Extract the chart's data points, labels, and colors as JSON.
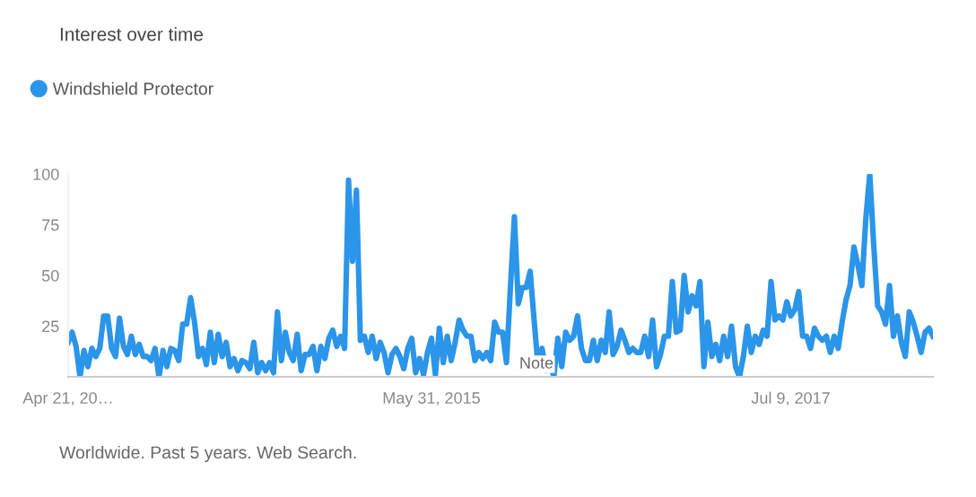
{
  "chart_data": {
    "type": "line",
    "title": "Interest over time",
    "categories": [
      "Apr 21, 20…",
      null,
      null,
      null,
      null,
      null,
      null,
      null,
      null,
      null,
      null,
      null,
      null,
      null,
      null,
      null,
      null,
      null,
      null,
      null,
      null,
      null,
      null,
      null,
      null,
      null,
      null,
      null,
      null,
      null,
      null,
      null,
      null,
      null,
      null,
      null,
      null,
      null,
      null,
      null,
      null,
      null,
      null,
      null,
      null,
      null,
      null,
      null,
      null,
      null,
      null,
      null,
      null,
      null,
      null,
      null,
      null,
      null,
      null,
      null,
      null,
      null,
      null,
      null,
      null,
      null,
      null,
      null,
      null,
      null,
      null,
      null,
      null,
      null,
      null,
      null,
      null,
      null,
      null,
      null,
      null,
      null,
      null,
      null,
      null,
      null,
      null,
      null,
      null,
      null,
      null,
      null,
      "May 31, 2015",
      null,
      null,
      null,
      null,
      null,
      null,
      null,
      null,
      null,
      null,
      null,
      null,
      null,
      null,
      null,
      null,
      null,
      null,
      null,
      null,
      null,
      null,
      null,
      null,
      null,
      null,
      null,
      null,
      null,
      null,
      null,
      null,
      null,
      null,
      null,
      null,
      null,
      null,
      null,
      null,
      null,
      null,
      null,
      null,
      null,
      null,
      null,
      null,
      null,
      null,
      null,
      null,
      null,
      null,
      null,
      null,
      null,
      null,
      null,
      null,
      null,
      null,
      null,
      null,
      null,
      null,
      null,
      null,
      null,
      null,
      null,
      null,
      null,
      null,
      null,
      null,
      null,
      null,
      null,
      null,
      null,
      null,
      null,
      null,
      null,
      null,
      null,
      null,
      null,
      null,
      "Jul 9, 2017",
      null,
      null,
      null,
      null,
      null,
      null,
      null,
      null,
      null,
      null,
      null,
      null,
      null,
      null,
      null,
      null,
      null,
      null,
      null,
      null,
      null,
      null,
      null,
      null,
      null,
      null,
      null,
      null,
      null,
      null,
      null,
      null,
      null,
      null,
      null,
      null
    ],
    "series": [
      {
        "name": "Windshield Protector",
        "color": "#2b95e9",
        "values": [
          17,
          22,
          15,
          0,
          13,
          5,
          14,
          10,
          14,
          30,
          30,
          14,
          10,
          29,
          15,
          11,
          20,
          11,
          16,
          10,
          10,
          8,
          14,
          0,
          13,
          5,
          14,
          13,
          8,
          26,
          26,
          39,
          27,
          10,
          14,
          6,
          22,
          7,
          21,
          10,
          17,
          5,
          9,
          3,
          8,
          7,
          4,
          17,
          2,
          7,
          3,
          7,
          2,
          32,
          8,
          22,
          12,
          8,
          21,
          3,
          11,
          11,
          15,
          3,
          15,
          9,
          19,
          23,
          15,
          20,
          14,
          97,
          57,
          92,
          18,
          20,
          12,
          20,
          9,
          17,
          12,
          2,
          11,
          14,
          10,
          4,
          14,
          19,
          2,
          9,
          1,
          12,
          19,
          1,
          24,
          7,
          20,
          8,
          17,
          28,
          23,
          20,
          20,
          8,
          12,
          9,
          12,
          8,
          27,
          22,
          22,
          7,
          44,
          79,
          36,
          44,
          44,
          52,
          28,
          5,
          14,
          3,
          7,
          0,
          19,
          5,
          22,
          18,
          20,
          30,
          14,
          8,
          8,
          18,
          8,
          18,
          12,
          32,
          11,
          15,
          23,
          18,
          12,
          14,
          12,
          12,
          20,
          10,
          28,
          5,
          11,
          20,
          20,
          47,
          22,
          23,
          50,
          32,
          40,
          35,
          47,
          5,
          27,
          10,
          16,
          8,
          20,
          10,
          25,
          5,
          0,
          10,
          25,
          12,
          20,
          16,
          23,
          20,
          47,
          28,
          30,
          28,
          37,
          30,
          33,
          42,
          20,
          20,
          14,
          24,
          20,
          18,
          20,
          12,
          20,
          14,
          27,
          38,
          45,
          64,
          55,
          45,
          78,
          100,
          65,
          35,
          32,
          26,
          45,
          20,
          30,
          17,
          10,
          32,
          27,
          20,
          12,
          22,
          24,
          20
        ]
      }
    ],
    "ylim": [
      0,
      100
    ],
    "yticks": [
      25,
      50,
      75,
      100
    ],
    "legend": "top left",
    "marker": "none",
    "line_style": "solid",
    "annotations": [
      "Note",
      "Worldwide. Past 5 years. Web Search."
    ]
  }
}
